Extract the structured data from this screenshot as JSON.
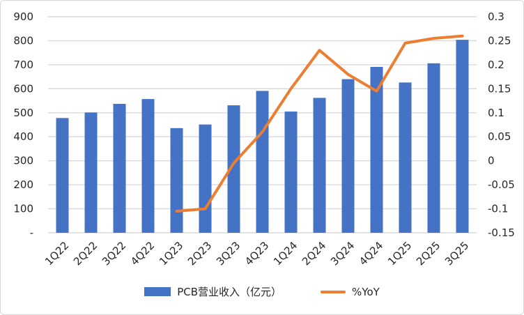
{
  "chart_data": {
    "type": "bar",
    "subtype": "bar-line-combo",
    "title": "",
    "categories": [
      "1Q22",
      "2Q22",
      "3Q22",
      "4Q22",
      "1Q23",
      "2Q23",
      "3Q23",
      "4Q23",
      "1Q24",
      "2Q24",
      "3Q24",
      "4Q24",
      "1Q25",
      "2Q25",
      "3Q25"
    ],
    "series": [
      {
        "name": "PCB营业收入（亿元）",
        "type": "bar",
        "axis": "left",
        "color": "#4472C4",
        "values": [
          478,
          501,
          537,
          557,
          436,
          451,
          531,
          591,
          505,
          562,
          640,
          691,
          626,
          706,
          804
        ]
      },
      {
        "name": "%YoY",
        "type": "line",
        "axis": "right",
        "color": "#ED7D31",
        "values": [
          null,
          null,
          null,
          null,
          -0.105,
          -0.1,
          -0.005,
          0.06,
          0.15,
          0.23,
          0.18,
          0.145,
          0.245,
          0.255,
          0.26
        ]
      }
    ],
    "left_axis": {
      "min": 0,
      "max": 900,
      "step": 100,
      "tick_labels": [
        "900",
        "800",
        "700",
        "600",
        "500",
        "400",
        "300",
        "200",
        "100",
        "-"
      ]
    },
    "right_axis": {
      "min": -0.15,
      "max": 0.3,
      "step": 0.05,
      "tick_labels": [
        "0.3",
        "0.25",
        "0.2",
        "0.15",
        "0.1",
        "0.05",
        "0",
        "-0.05",
        "-0.1",
        "-0.15"
      ]
    },
    "grid": true,
    "legend_position": "bottom",
    "gridline_color": "#D9D9D9",
    "text_color": "#262626",
    "background": "#FFFFFF",
    "x_label_rotation_deg": 45
  }
}
